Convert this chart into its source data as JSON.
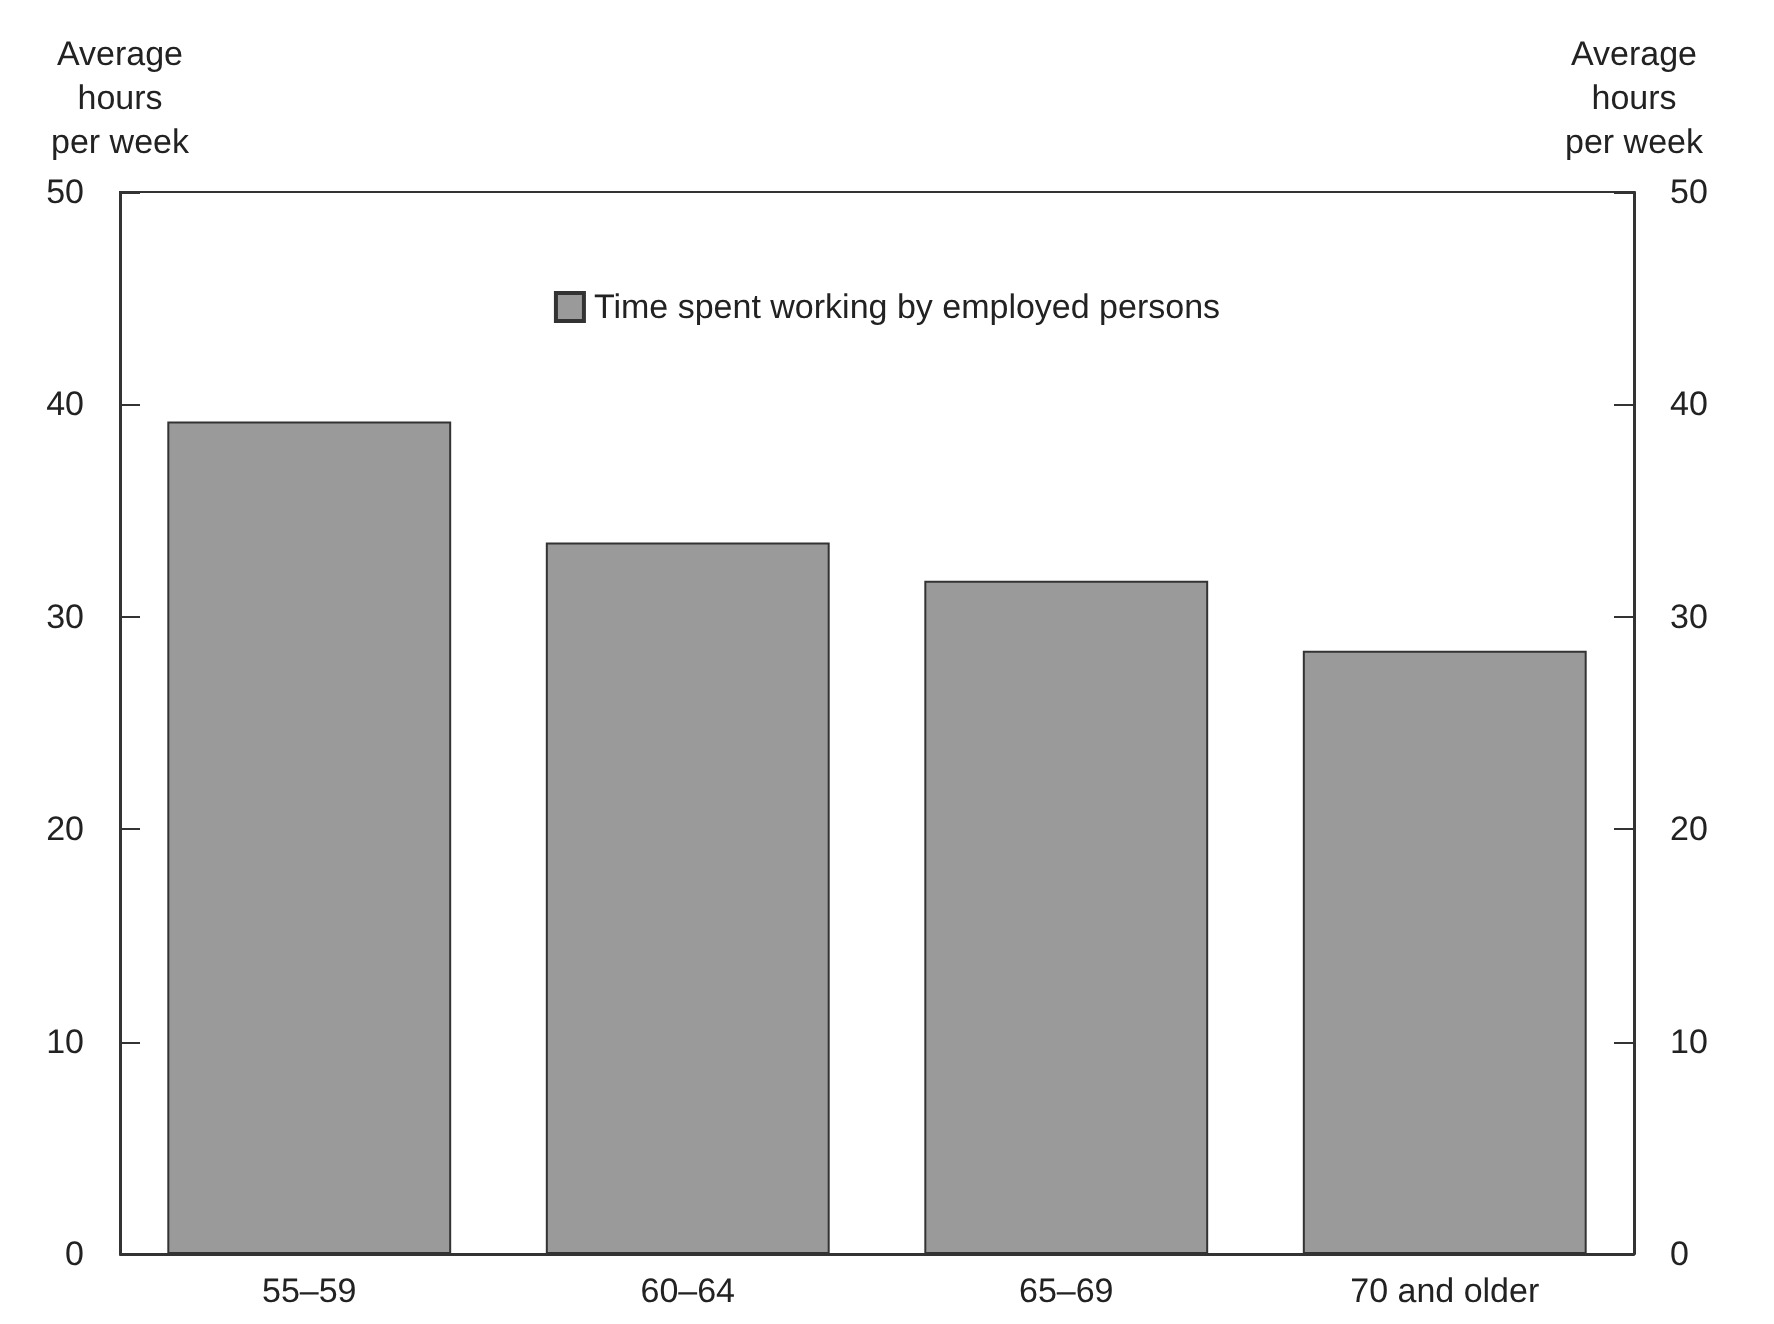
{
  "chart_data": {
    "type": "bar",
    "ylabel": "Average\nhours\nper week",
    "y2label": "Average\nhours\nper week",
    "categories": [
      "55–59",
      "60–64",
      "65–69",
      "70 and older"
    ],
    "series": [
      {
        "name": "Time spent working by employed persons",
        "color": "#9a9a9a",
        "values": [
          39.2,
          33.5,
          31.7,
          28.4
        ]
      }
    ],
    "ylim": [
      0,
      50
    ],
    "yticks": [
      0,
      10,
      20,
      30,
      40,
      50
    ],
    "y2lim": [
      0,
      50
    ],
    "y2ticks": [
      0,
      10,
      20,
      30,
      40,
      50
    ],
    "legend": "top",
    "grid": false
  }
}
